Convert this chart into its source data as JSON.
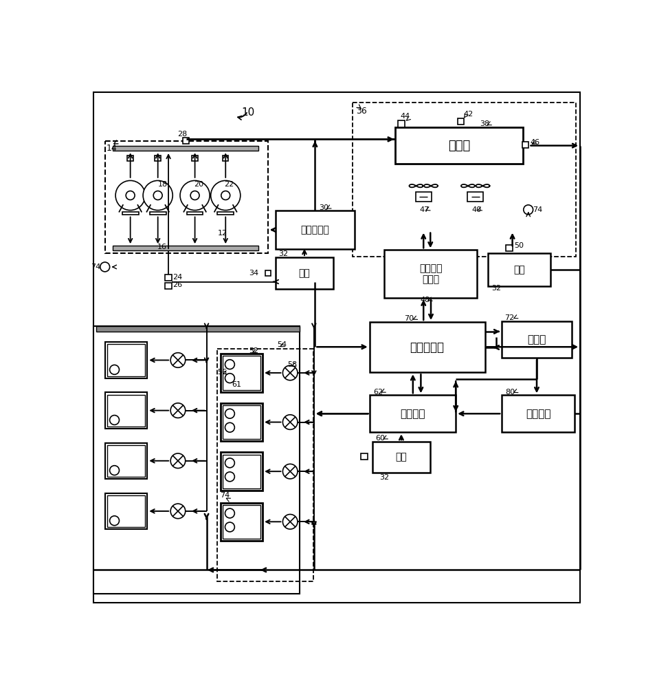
{
  "bg_color": "#ffffff",
  "lbl_condenser": "冷凝器",
  "lbl_cond_ctrl": "冷凝单元\n控制器",
  "lbl_power": "电源",
  "lbl_rack_ctrl": "机架控制器",
  "lbl_sys_ctrl": "系统控制器",
  "lbl_server": "服务器",
  "lbl_box_ctrl": "筱控制器",
  "lbl_mobile": "移动设备"
}
